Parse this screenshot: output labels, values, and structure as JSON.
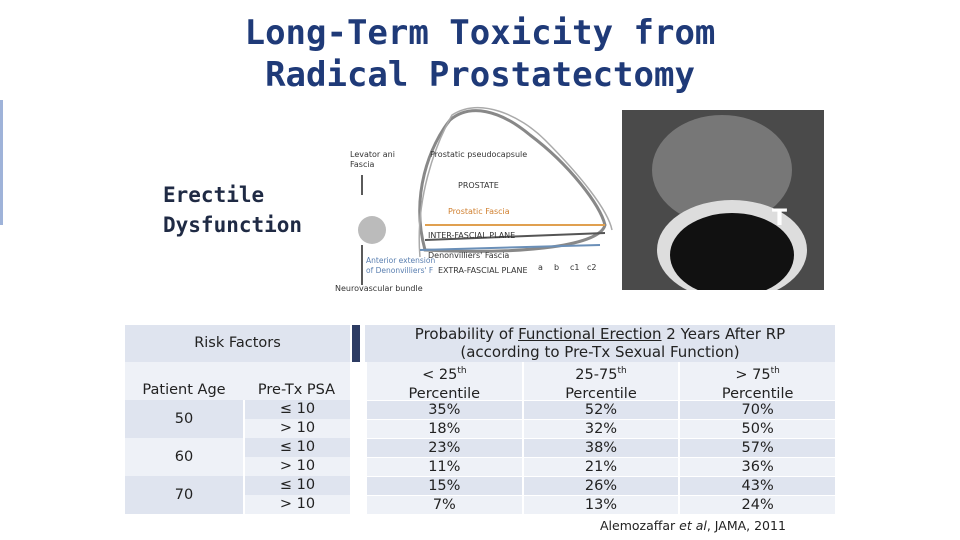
{
  "title": [
    "Long-Term Toxicity from",
    "Radical Prostatectomy"
  ],
  "side_label": [
    "Erectile",
    "Dysfunction"
  ],
  "diagram": {
    "labels": {
      "levator": [
        "Levator ani",
        "Fascia"
      ],
      "pseudocapsule": "Prostatic pseudocapsule",
      "prostate": "PROSTATE",
      "prostatic_fascia": "Prostatic Fascia",
      "inter": "INTER-FASCIAL PLANE",
      "denon": "Denonvilliers' Fascia",
      "anterior": [
        "Anterior extension",
        "of Denonvilliers' F"
      ],
      "extra": "EXTRA-FASCIAL PLANE",
      "nvb": "Neurovascular bundle",
      "planes": [
        "a",
        "b",
        "c1",
        "c2"
      ]
    }
  },
  "mri": {
    "label": "T"
  },
  "left_table": {
    "header": "Risk Factors",
    "columns": [
      "Patient Age",
      "Pre-Tx PSA"
    ],
    "rows": [
      {
        "age": "50",
        "psa": [
          "≤ 10",
          "> 10"
        ]
      },
      {
        "age": "60",
        "psa": [
          "≤ 10",
          "> 10"
        ]
      },
      {
        "age": "70",
        "psa": [
          "≤ 10",
          "> 10"
        ]
      }
    ]
  },
  "right_table": {
    "heading": {
      "pre": "Probability of ",
      "underlined": "Functional Erection",
      "post": " 2 Years After RP",
      "line2": "(according to Pre-Tx Sexual Function)"
    },
    "columns": [
      {
        "main": "< 25",
        "sup": "th",
        "sub": "Percentile"
      },
      {
        "main": "25-75",
        "sup": "th",
        "sub": "Percentile"
      },
      {
        "main": "> 75",
        "sup": "th",
        "sub": "Percentile"
      }
    ],
    "rows": [
      [
        "35%",
        "52%",
        "70%"
      ],
      [
        "18%",
        "32%",
        "50%"
      ],
      [
        "23%",
        "38%",
        "57%"
      ],
      [
        "11%",
        "21%",
        "36%"
      ],
      [
        "15%",
        "26%",
        "43%"
      ],
      [
        "7%",
        "13%",
        "24%"
      ]
    ]
  },
  "citation": {
    "author": "Alemozaffar ",
    "etal": "et al",
    "rest": ", JAMA, 2011"
  }
}
